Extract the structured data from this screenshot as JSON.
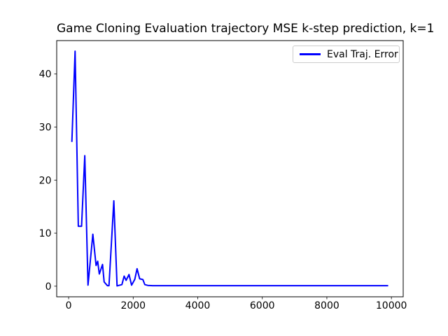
{
  "figure": {
    "background": "#ffffff",
    "axes_edge_color": "#000000",
    "text_color": "#000000"
  },
  "chart_data": {
    "type": "line",
    "title": "Game Cloning Evaluation trajectory MSE k-step prediction, k=1",
    "xlabel": "",
    "ylabel": "",
    "xlim": [
      -370,
      10365
    ],
    "ylim": [
      -2,
      46.3
    ],
    "xticks": [
      0,
      2000,
      4000,
      6000,
      8000,
      10000
    ],
    "yticks": [
      0,
      10,
      20,
      30,
      40
    ],
    "grid": false,
    "legend": {
      "position": "upper right",
      "entries": [
        {
          "label": "Eval Traj. Error",
          "color": "#0000ff"
        }
      ]
    },
    "series": [
      {
        "name": "Eval Traj. Error",
        "color": "#0000ff",
        "linewidth": 2,
        "points": [
          [
            100,
            27.2
          ],
          [
            200,
            44.3
          ],
          [
            300,
            11.3
          ],
          [
            400,
            11.3
          ],
          [
            500,
            24.6
          ],
          [
            600,
            0.2
          ],
          [
            750,
            9.8
          ],
          [
            850,
            3.9
          ],
          [
            900,
            4.7
          ],
          [
            950,
            2.3
          ],
          [
            1050,
            4.1
          ],
          [
            1100,
            0.8
          ],
          [
            1200,
            0.1
          ],
          [
            1250,
            0.1
          ],
          [
            1400,
            16.1
          ],
          [
            1500,
            0.05
          ],
          [
            1650,
            0.3
          ],
          [
            1720,
            1.9
          ],
          [
            1780,
            1.1
          ],
          [
            1870,
            2.2
          ],
          [
            1950,
            0.2
          ],
          [
            2050,
            1.3
          ],
          [
            2120,
            3.3
          ],
          [
            2200,
            1.4
          ],
          [
            2300,
            1.25
          ],
          [
            2360,
            0.3
          ],
          [
            2450,
            0.15
          ],
          [
            2600,
            0.1
          ],
          [
            9900,
            0.1
          ]
        ]
      }
    ]
  }
}
